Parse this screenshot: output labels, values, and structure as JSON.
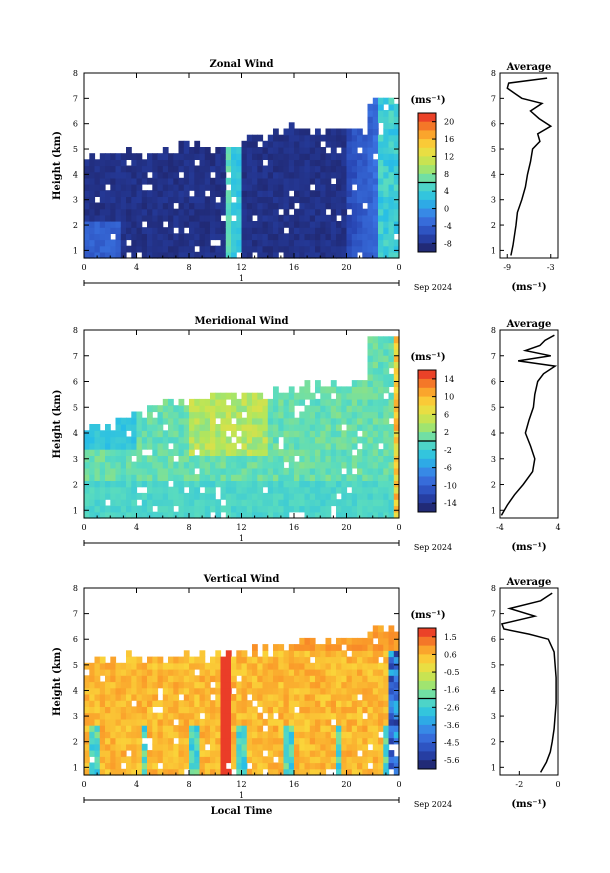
{
  "date_label": "Sep 2024",
  "day_label": "1",
  "xaxis_label": "Local Time",
  "yaxis_label": "Height (km)",
  "unit_label": "(ms⁻¹)",
  "avg_title": "Average",
  "chart_data": [
    {
      "type": "heatmap",
      "title": "Zonal Wind",
      "ylabel": "Height (km)",
      "x_ticks": [
        "0",
        "4",
        "8",
        "12",
        "16",
        "20",
        "0"
      ],
      "y_ticks": [
        "1",
        "2",
        "3",
        "4",
        "5",
        "6",
        "7",
        "8"
      ],
      "xlim": [
        0,
        24
      ],
      "ylim": [
        0.7,
        8.0
      ],
      "top_km": [
        4.9,
        5.0,
        5.1,
        5.4,
        5.2,
        5.6,
        5.9,
        5.8,
        6.0,
        7.1
      ],
      "colorbar_ticks": [
        "20",
        "16",
        "12",
        "8",
        "4",
        "0",
        "-4",
        "-8"
      ],
      "colorbar_range": [
        -10,
        22
      ],
      "avg_profile": {
        "xlabel": "(ms⁻¹)",
        "xticks": [
          "-9",
          "-3"
        ],
        "xlim": [
          -10,
          -2
        ],
        "heights": [
          0.8,
          1.2,
          1.6,
          2.0,
          2.5,
          3.0,
          3.5,
          4.0,
          4.5,
          5.0,
          5.3,
          5.6,
          5.9,
          6.2,
          6.5,
          6.8,
          7.0,
          7.2,
          7.4,
          7.6,
          7.8
        ],
        "values": [
          -8.5,
          -8.2,
          -8.0,
          -7.8,
          -7.6,
          -7.0,
          -6.5,
          -6.2,
          -5.8,
          -5.5,
          -4.5,
          -4.8,
          -3.0,
          -4.6,
          -5.8,
          -4.2,
          -7.0,
          -8.0,
          -9.0,
          -8.8,
          -3.5
        ]
      }
    },
    {
      "type": "heatmap",
      "title": "Meridional Wind",
      "ylabel": "Height (km)",
      "x_ticks": [
        "0",
        "4",
        "8",
        "12",
        "16",
        "20",
        "0"
      ],
      "y_ticks": [
        "1",
        "2",
        "3",
        "4",
        "5",
        "6",
        "7",
        "8"
      ],
      "xlim": [
        0,
        24
      ],
      "ylim": [
        0.7,
        8.0
      ],
      "top_km": [
        4.3,
        4.8,
        5.3,
        5.4,
        5.6,
        5.7,
        5.8,
        6.0,
        6.0,
        7.9
      ],
      "colorbar_ticks": [
        "14",
        "10",
        "6",
        "2",
        "-2",
        "-6",
        "-10",
        "-14"
      ],
      "colorbar_range": [
        -16,
        16
      ],
      "avg_profile": {
        "xlabel": "(ms⁻¹)",
        "xticks": [
          "-4",
          "4"
        ],
        "xlim": [
          -4,
          4
        ],
        "heights": [
          0.8,
          1.2,
          1.6,
          2.0,
          2.5,
          3.0,
          3.5,
          4.0,
          4.5,
          5.0,
          5.5,
          6.0,
          6.3,
          6.6,
          6.8,
          7.0,
          7.2,
          7.4,
          7.6,
          7.8
        ],
        "values": [
          -3.8,
          -3.0,
          -2.0,
          -0.8,
          0.5,
          0.8,
          0.2,
          -0.5,
          0.0,
          0.6,
          0.8,
          1.2,
          2.0,
          3.6,
          -1.5,
          3.0,
          -0.5,
          1.5,
          2.2,
          3.5
        ]
      }
    },
    {
      "type": "heatmap",
      "title": "Vertical Wind",
      "ylabel": "Height (km)",
      "xlabel": "Local Time",
      "x_ticks": [
        "0",
        "4",
        "8",
        "12",
        "16",
        "20",
        "0"
      ],
      "y_ticks": [
        "1",
        "2",
        "3",
        "4",
        "5",
        "6",
        "7",
        "8"
      ],
      "xlim": [
        0,
        24
      ],
      "ylim": [
        0.7,
        8.0
      ],
      "top_km": [
        5.3,
        5.4,
        5.4,
        5.5,
        5.6,
        5.7,
        5.9,
        6.1,
        6.3,
        6.6
      ],
      "colorbar_ticks": [
        "1.5",
        "0.6",
        "-0.5",
        "-1.6",
        "-2.6",
        "-3.6",
        "-4.5",
        "-5.6"
      ],
      "colorbar_range": [
        -6.0,
        2.0
      ],
      "avg_profile": {
        "xlabel": "(ms⁻¹)",
        "xticks": [
          "-2",
          "0"
        ],
        "xlim": [
          -3,
          0
        ],
        "heights": [
          0.8,
          1.2,
          1.6,
          2.0,
          2.5,
          3.0,
          3.5,
          4.0,
          4.5,
          5.0,
          5.5,
          6.0,
          6.2,
          6.4,
          6.6,
          6.9,
          7.2,
          7.5,
          7.8
        ],
        "values": [
          -0.9,
          -0.6,
          -0.4,
          -0.3,
          -0.2,
          -0.15,
          -0.1,
          -0.1,
          -0.1,
          -0.15,
          -0.2,
          -0.5,
          -1.5,
          -2.8,
          -2.9,
          -1.2,
          -2.5,
          -0.9,
          -0.3
        ]
      }
    }
  ]
}
